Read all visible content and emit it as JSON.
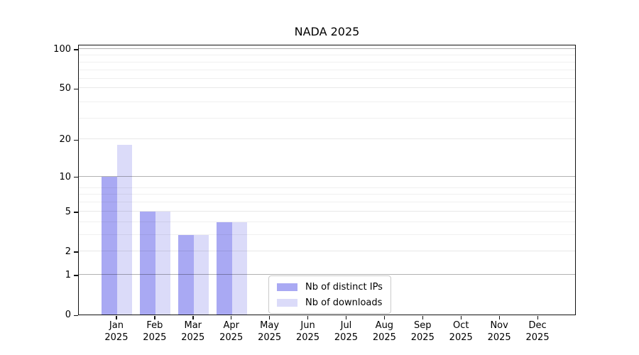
{
  "chart_data": {
    "type": "bar",
    "title": "NADA 2025",
    "categories": [
      "Jan",
      "Feb",
      "Mar",
      "Apr",
      "May",
      "Jun",
      "Jul",
      "Aug",
      "Sep",
      "Oct",
      "Nov",
      "Dec"
    ],
    "x_year_label": "2025",
    "series": [
      {
        "name": "Nb of distinct IPs",
        "color": "#a9a9f3",
        "values": [
          10,
          5,
          3,
          4,
          0,
          0,
          0,
          0,
          0,
          0,
          0,
          0
        ]
      },
      {
        "name": "Nb of downloads",
        "color": "#dbdbf9",
        "values": [
          18,
          5,
          3,
          4,
          0,
          0,
          0,
          0,
          0,
          0,
          0,
          0
        ]
      }
    ],
    "yticks": [
      0,
      1,
      2,
      5,
      10,
      20,
      50,
      100
    ],
    "major_gridline_values": [
      1,
      10,
      100
    ],
    "minor_gridline_values": [
      3,
      4,
      6,
      7,
      8,
      29,
      39,
      59,
      69,
      79,
      89
    ],
    "ylim": [
      0,
      109
    ],
    "yscale": "log1p",
    "xlabel": "",
    "ylabel": "",
    "grid": true,
    "legend": {
      "position": "inside-bottom-center",
      "labels": [
        "Nb of distinct IPs",
        "Nb of downloads"
      ]
    }
  }
}
